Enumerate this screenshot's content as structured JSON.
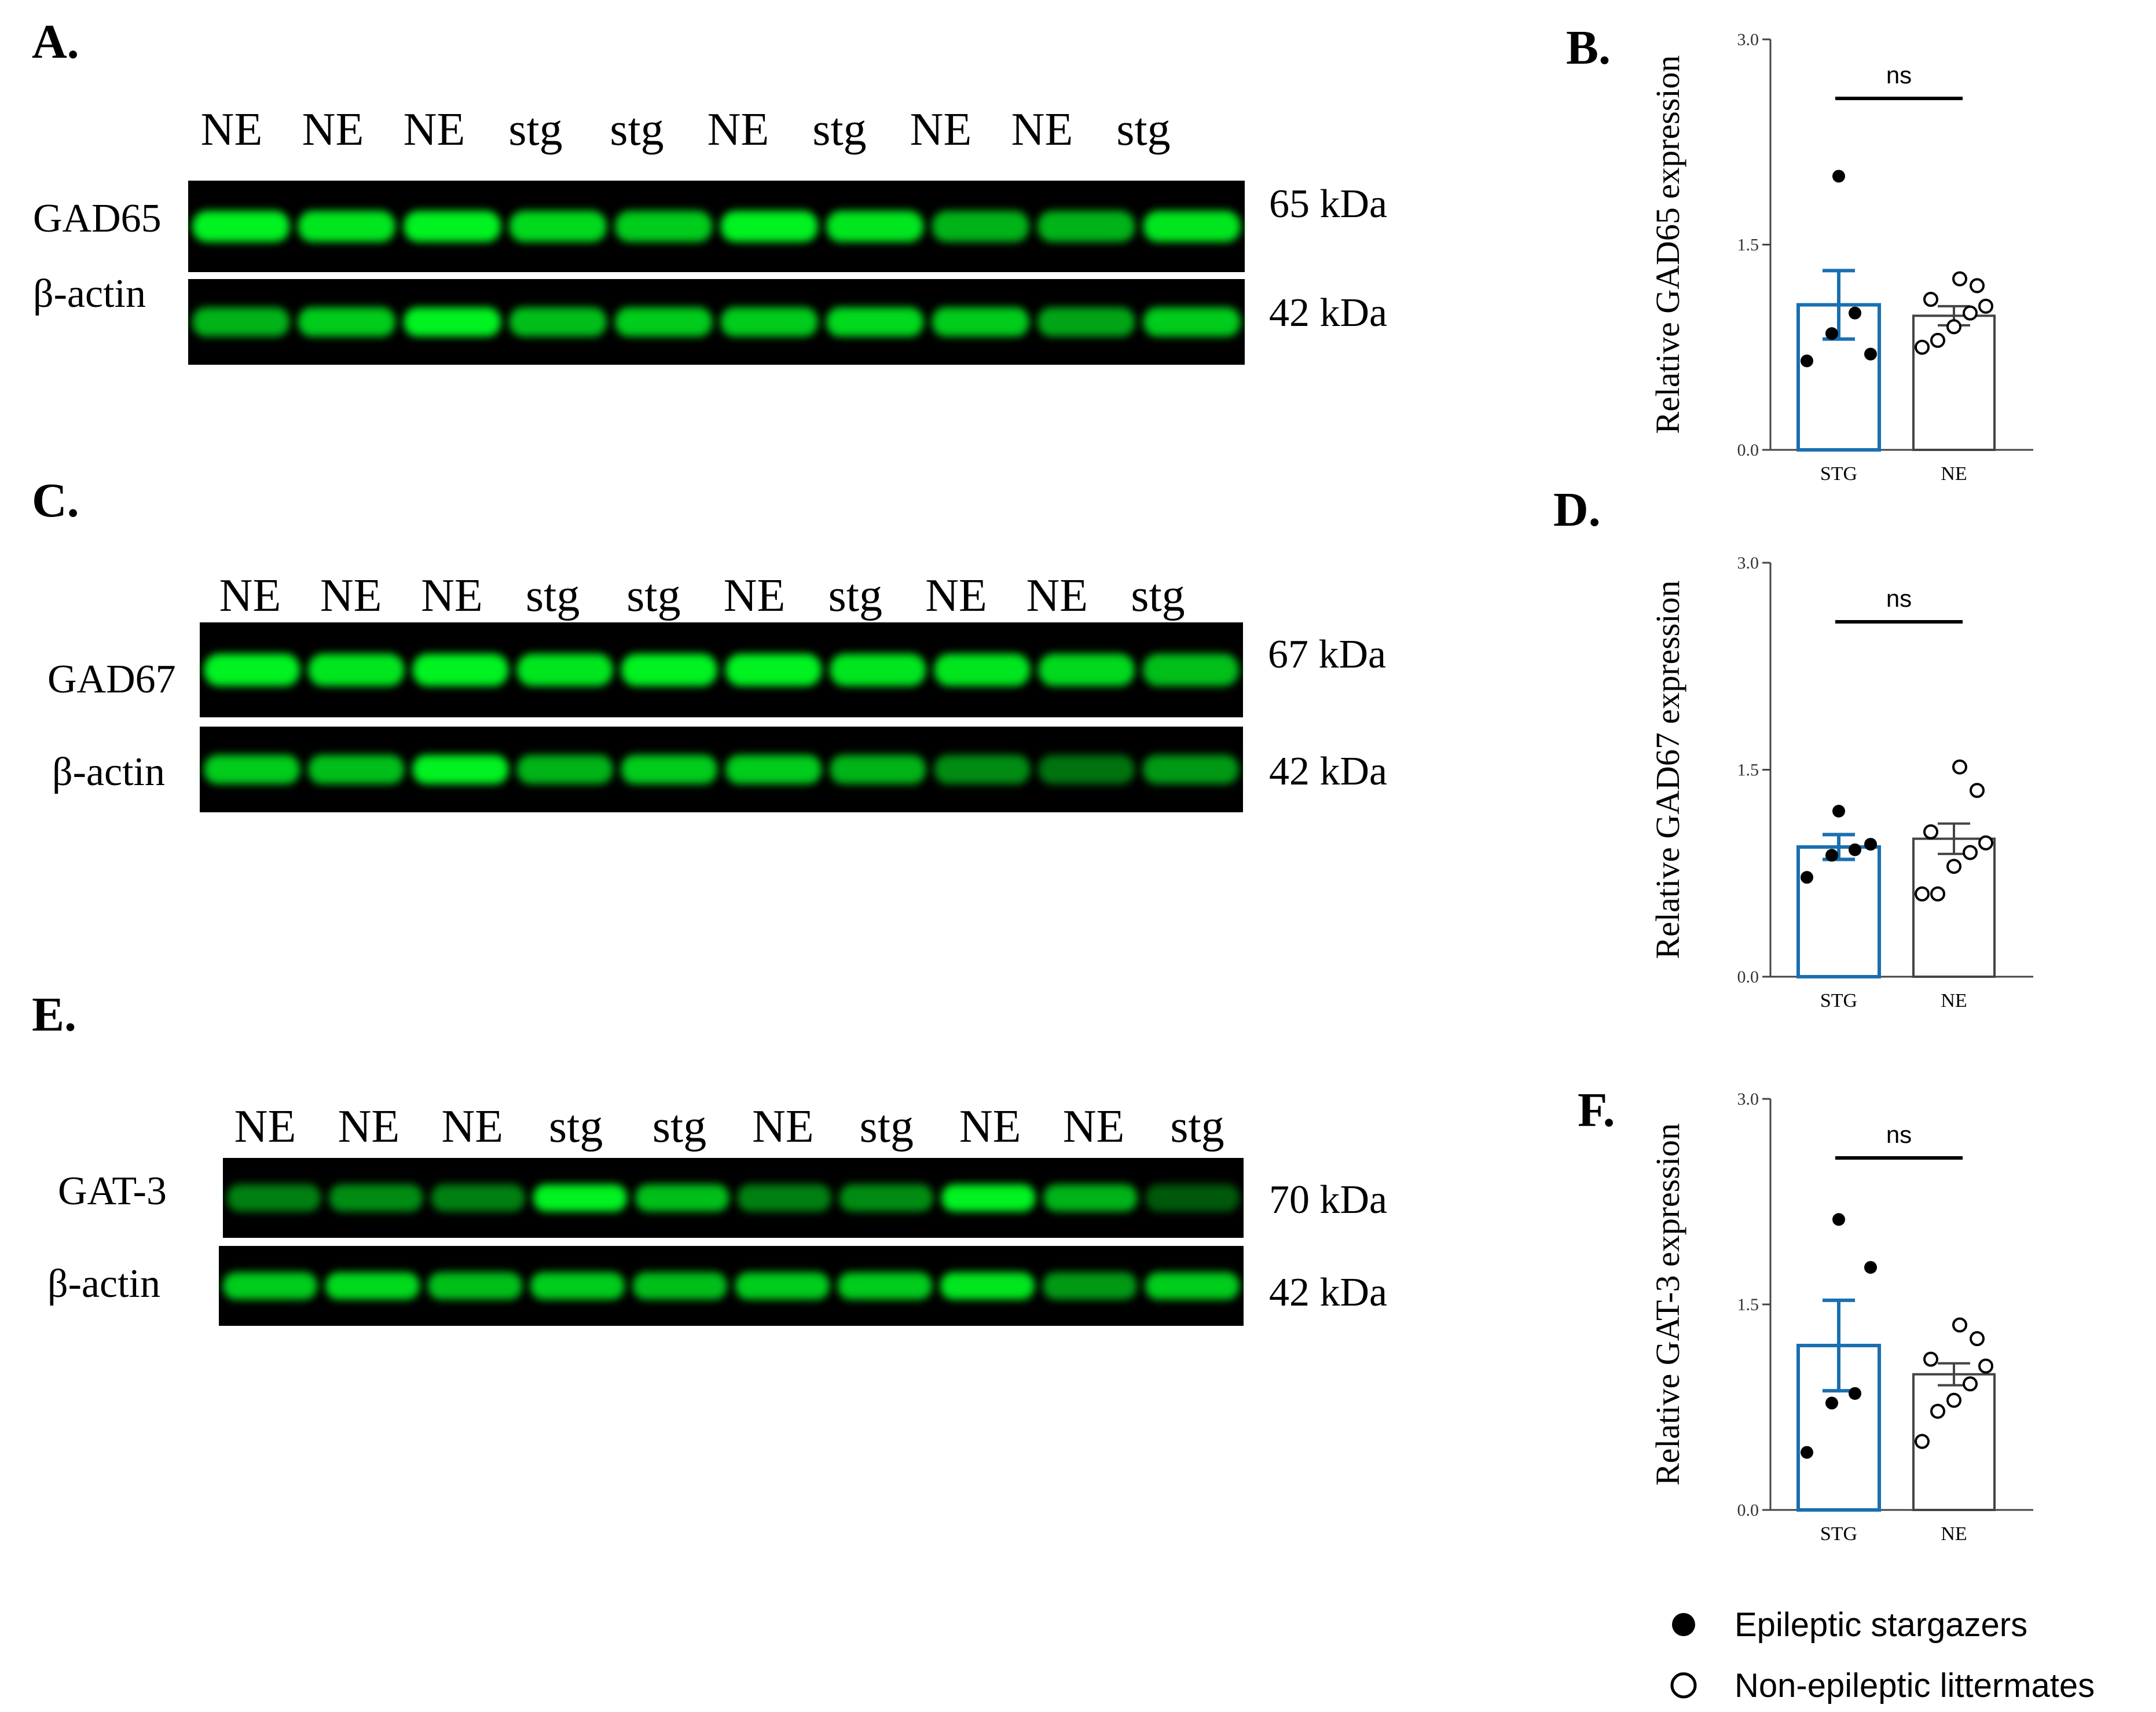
{
  "blots": [
    {
      "panel": "A.",
      "lanes": [
        "NE",
        "NE",
        "NE",
        "stg",
        "stg",
        "NE",
        "stg",
        "NE",
        "NE",
        "stg"
      ],
      "rows": [
        {
          "label": "GAD65",
          "mw": "65 kDa",
          "intensities": [
            0.95,
            0.9,
            0.95,
            0.85,
            0.8,
            0.95,
            0.9,
            0.7,
            0.7,
            0.9
          ]
        },
        {
          "label": "β-actin",
          "mw": "42 kDa",
          "intensities": [
            0.7,
            0.8,
            0.95,
            0.75,
            0.8,
            0.8,
            0.85,
            0.8,
            0.65,
            0.8
          ]
        }
      ]
    },
    {
      "panel": "C.",
      "lanes": [
        "NE",
        "NE",
        "NE",
        "stg",
        "stg",
        "NE",
        "stg",
        "NE",
        "NE",
        "stg"
      ],
      "rows": [
        {
          "label": "GAD67",
          "mw": "67 kDa",
          "intensities": [
            0.95,
            0.9,
            0.95,
            0.9,
            0.95,
            0.95,
            0.9,
            0.9,
            0.85,
            0.75
          ]
        },
        {
          "label": "β-actin",
          "mw": "42 kDa",
          "intensities": [
            0.8,
            0.75,
            0.95,
            0.7,
            0.8,
            0.8,
            0.7,
            0.55,
            0.45,
            0.6
          ]
        }
      ]
    },
    {
      "panel": "E.",
      "lanes": [
        "NE",
        "NE",
        "NE",
        "stg",
        "stg",
        "NE",
        "stg",
        "NE",
        "NE",
        "stg"
      ],
      "rows": [
        {
          "label": "GAT-3",
          "mw": "70 kDa",
          "intensities": [
            0.5,
            0.55,
            0.5,
            0.95,
            0.75,
            0.5,
            0.55,
            0.95,
            0.7,
            0.35
          ]
        },
        {
          "label": "β-actin",
          "mw": "42 kDa",
          "intensities": [
            0.8,
            0.85,
            0.75,
            0.8,
            0.75,
            0.8,
            0.8,
            0.9,
            0.6,
            0.8
          ]
        }
      ]
    }
  ],
  "chart_data": [
    {
      "panel": "B.",
      "type": "bar",
      "ylabel": "Relative GAD65 expression",
      "ylim": [
        0,
        3
      ],
      "yticks": [
        "0.0",
        "1.5",
        "3.0"
      ],
      "categories": [
        "STG",
        "NE"
      ],
      "means": [
        1.06,
        0.98
      ],
      "sem": [
        0.25,
        0.07
      ],
      "points": [
        [
          0.65,
          0.85,
          1.0,
          0.7,
          2.0
        ],
        [
          0.75,
          0.8,
          0.9,
          1.0,
          1.05,
          1.1,
          1.2,
          1.25
        ]
      ],
      "significance": "ns"
    },
    {
      "panel": "D.",
      "type": "bar",
      "ylabel": "Relative GAD67 expression",
      "ylim": [
        0,
        3
      ],
      "yticks": [
        "0.0",
        "1.5",
        "3.0"
      ],
      "categories": [
        "STG",
        "NE"
      ],
      "means": [
        0.94,
        1.0
      ],
      "sem": [
        0.09,
        0.11
      ],
      "points": [
        [
          0.72,
          0.88,
          0.92,
          0.96,
          1.2
        ],
        [
          0.6,
          0.6,
          0.8,
          0.9,
          0.97,
          1.05,
          1.35,
          1.52
        ]
      ],
      "significance": "ns"
    },
    {
      "panel": "F.",
      "type": "bar",
      "ylabel": "Relative GAT-3 expression",
      "ylim": [
        0,
        3
      ],
      "yticks": [
        "0.0",
        "1.5",
        "3.0"
      ],
      "categories": [
        "STG",
        "NE"
      ],
      "means": [
        1.2,
        0.99
      ],
      "sem": [
        0.33,
        0.08
      ],
      "points": [
        [
          0.42,
          0.78,
          0.85,
          1.77,
          2.12
        ],
        [
          0.5,
          0.72,
          0.8,
          0.92,
          1.05,
          1.1,
          1.25,
          1.35
        ]
      ],
      "significance": "ns"
    }
  ],
  "legend": [
    {
      "marker": "filled",
      "label": "Epileptic stargazers"
    },
    {
      "marker": "open",
      "label": "Non-epileptic littermates"
    }
  ],
  "colors": {
    "stg": "#1a6fb0",
    "ne": "#444444",
    "band": "#00ff22",
    "blot_bg": "#000000"
  }
}
